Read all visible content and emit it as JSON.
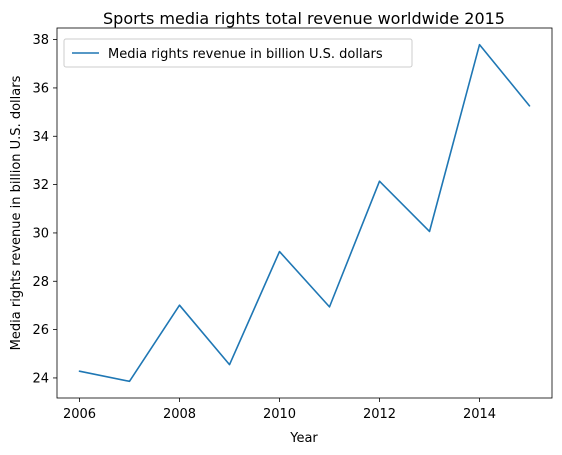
{
  "chart_data": {
    "type": "line",
    "title": "Sports media rights total revenue worldwide 2015",
    "xlabel": "Year",
    "ylabel": "Media rights revenue in billion U.S. dollars",
    "x": [
      2006,
      2007,
      2008,
      2009,
      2010,
      2011,
      2012,
      2013,
      2014,
      2015
    ],
    "series": [
      {
        "name": "Media rights revenue in billion U.S. dollars",
        "values": [
          24.28,
          23.86,
          27.01,
          24.55,
          29.23,
          26.94,
          32.14,
          30.06,
          37.79,
          35.26
        ],
        "color": "#1f77b4"
      }
    ],
    "xticks": [
      "2006",
      "2008",
      "2010",
      "2012",
      "2014"
    ],
    "yticks": [
      "24",
      "26",
      "28",
      "30",
      "32",
      "34",
      "36",
      "38"
    ],
    "xlim": [
      2005.55,
      2015.45
    ],
    "ylim": [
      23.17,
      38.48
    ],
    "grid": false,
    "legend_position": "top-left"
  }
}
